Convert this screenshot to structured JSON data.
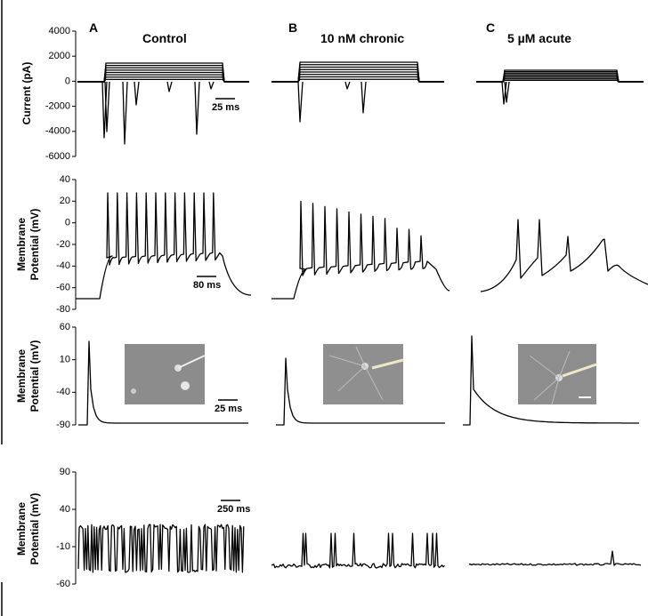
{
  "columns": [
    {
      "letter": "A",
      "title": "Control"
    },
    {
      "letter": "B",
      "title": "10 nM chronic"
    },
    {
      "letter": "C",
      "title": "5 µM acute"
    }
  ],
  "rows": [
    {
      "axis_label": [
        "Current (pA)"
      ],
      "ticks": [
        "4000",
        "2000",
        "0",
        "-2000",
        "-4000",
        "-6000"
      ],
      "scale_bar": "25 ms"
    },
    {
      "axis_label": [
        "Membrane",
        "Potential (mV)"
      ],
      "ticks": [
        "40",
        "20",
        "0",
        "-20",
        "-40",
        "-60",
        "-80"
      ],
      "scale_bar": "80 ms"
    },
    {
      "axis_label": [
        "Membrane",
        "Potential (mV)"
      ],
      "ticks": [
        "60",
        "10",
        "-40",
        "-90"
      ],
      "scale_bar": "25 ms"
    },
    {
      "axis_label": [
        "Membrane",
        "Potential (mV)"
      ],
      "ticks": [
        "90",
        "40",
        "-10",
        "-60"
      ],
      "scale_bar": "250 ms"
    }
  ]
}
